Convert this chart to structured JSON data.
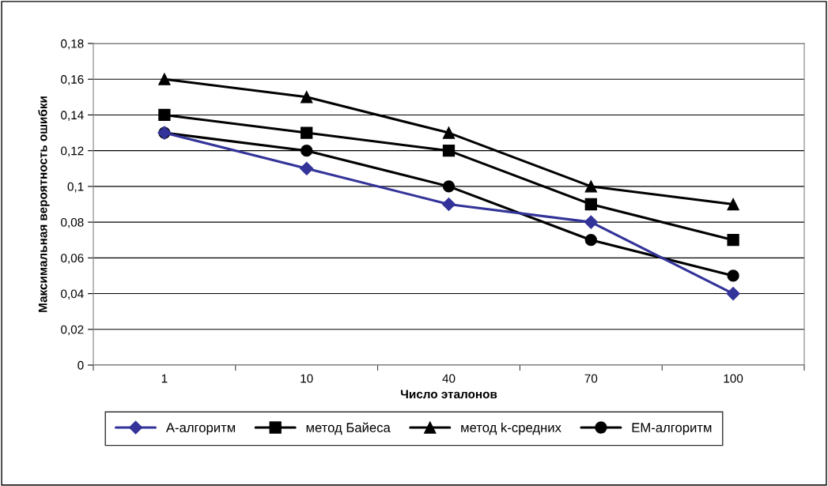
{
  "chart_data": {
    "type": "line",
    "xlabel": "Число эталонов",
    "ylabel": "Максимальная вероятность ошибки",
    "categories": [
      "1",
      "10",
      "40",
      "70",
      "100"
    ],
    "series": [
      {
        "name": "А-алгоритм",
        "color": "#333399",
        "marker": "diamond",
        "values": [
          0.13,
          0.11,
          0.09,
          0.08,
          0.04
        ]
      },
      {
        "name": "метод Байеса",
        "color": "#000000",
        "marker": "square",
        "values": [
          0.14,
          0.13,
          0.12,
          0.09,
          0.07
        ]
      },
      {
        "name": "метод k-средних",
        "color": "#000000",
        "marker": "triangle",
        "values": [
          0.16,
          0.15,
          0.13,
          0.1,
          0.09
        ]
      },
      {
        "name": "EM-алгоритм",
        "color": "#000000",
        "marker": "circle",
        "values": [
          0.13,
          0.12,
          0.1,
          0.07,
          0.05
        ]
      }
    ],
    "ylim": [
      0,
      0.18
    ],
    "yticks": [
      0,
      {
        "value": 0.02,
        "label": "0,02"
      },
      {
        "value": 0.04,
        "label": "0,04"
      },
      {
        "value": 0.06,
        "label": "0,06"
      },
      {
        "value": 0.08,
        "label": "0,08"
      },
      {
        "value": 0.1,
        "label": "0,1"
      },
      {
        "value": 0.12,
        "label": "0,12"
      },
      {
        "value": 0.14,
        "label": "0,14"
      },
      {
        "value": 0.16,
        "label": "0,16"
      },
      {
        "value": 0.18,
        "label": "0,18"
      }
    ],
    "grid": "y",
    "legend": "bottom",
    "line_style": "solid"
  }
}
